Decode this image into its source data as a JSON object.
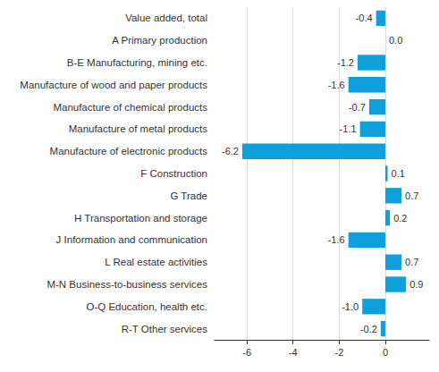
{
  "chart_data": {
    "type": "bar",
    "orientation": "horizontal",
    "categories": [
      "Value added, total",
      "A Primary production",
      "B-E Manufacturing, mining etc.",
      "Manufacture of wood and paper products",
      "Manufacture of chemical products",
      "Manufacture of metal products",
      "Manufacture of electronic products",
      "F Construction",
      "G Trade",
      "H Transportation and storage",
      "J Information and communication",
      "L Real estate activities",
      "M-N Business-to-business services",
      "O-Q Education, health etc.",
      "R-T Other services"
    ],
    "values": [
      -0.4,
      0.0,
      -1.2,
      -1.6,
      -0.7,
      -1.1,
      -6.2,
      0.1,
      0.7,
      0.2,
      -1.6,
      0.7,
      0.9,
      -1.0,
      -0.2
    ],
    "value_labels": [
      "-0.4",
      "0.0",
      "-1.2",
      "-1.6",
      "-0.7",
      "-1.1",
      "-6.2",
      "0.1",
      "0.7",
      "0.2",
      "-1.6",
      "0.7",
      "0.9",
      "-1.0",
      "-0.2"
    ],
    "color": "#0fa0dc",
    "xlim": [
      -7.4,
      1.9
    ],
    "xticks": [
      -6,
      -4,
      -2,
      0
    ],
    "grid": true,
    "data_labels": true
  }
}
